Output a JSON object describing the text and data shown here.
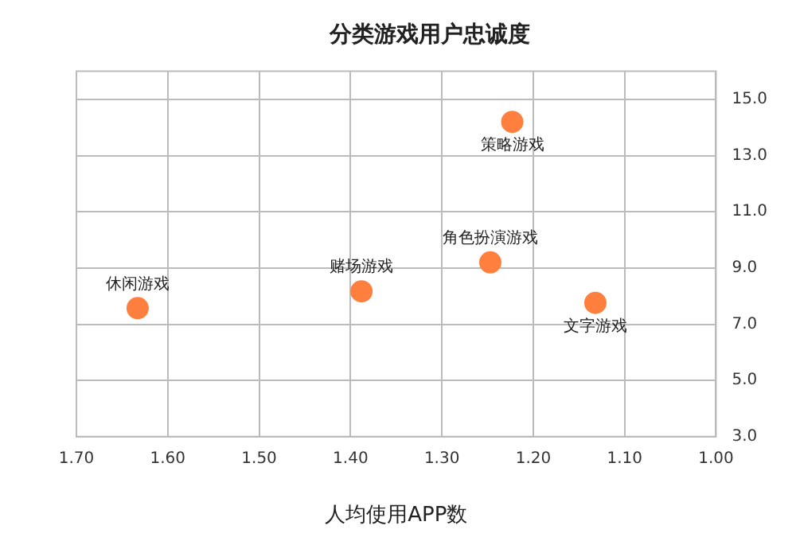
{
  "chart_data": {
    "type": "scatter",
    "title": "分类游戏用户忠诚度",
    "xlabel": "人均使用APP数",
    "series": [
      {
        "type": "scatter",
        "color": "#ff7f3f",
        "x": [
          1.633,
          1.388,
          1.247,
          1.223,
          1.132
        ],
        "values": [
          7.57,
          8.17,
          9.2,
          14.2,
          7.76
        ]
      }
    ],
    "annotations": [
      {
        "text": "休闲游戏",
        "x": 1.633,
        "y": 7.57
      },
      {
        "text": "赌场游戏",
        "x": 1.388,
        "y": 8.17
      },
      {
        "text": "角色扮演游戏",
        "x": 1.247,
        "y": 9.2
      },
      {
        "text": "策略游戏",
        "x": 1.223,
        "y": 14.2
      },
      {
        "text": "文字游戏",
        "x": 1.132,
        "y": 7.76
      }
    ],
    "xlim": [
      1.7,
      1.0
    ],
    "xticks": [
      {
        "value": 1.7,
        "label": "1.70"
      },
      {
        "value": 1.6,
        "label": "1.60"
      },
      {
        "value": 1.5,
        "label": "1.50"
      },
      {
        "value": 1.4,
        "label": "1.40"
      },
      {
        "value": 1.3,
        "label": "1.30"
      },
      {
        "value": 1.2,
        "label": "1.20"
      },
      {
        "value": 1.1,
        "label": "1.10"
      },
      {
        "value": 1.0,
        "label": "1.00"
      }
    ],
    "ylim": [
      3,
      16
    ],
    "yticks": [
      {
        "value": 3,
        "label": "3.0"
      },
      {
        "value": 5,
        "label": "5.0"
      },
      {
        "value": 7,
        "label": "7.0"
      },
      {
        "value": 9,
        "label": "9.0"
      },
      {
        "value": 11,
        "label": "11.0"
      },
      {
        "value": 13,
        "label": "13.0"
      },
      {
        "value": 15,
        "label": "15.0"
      }
    ],
    "grid": true,
    "legend": false,
    "marker": "circle"
  }
}
